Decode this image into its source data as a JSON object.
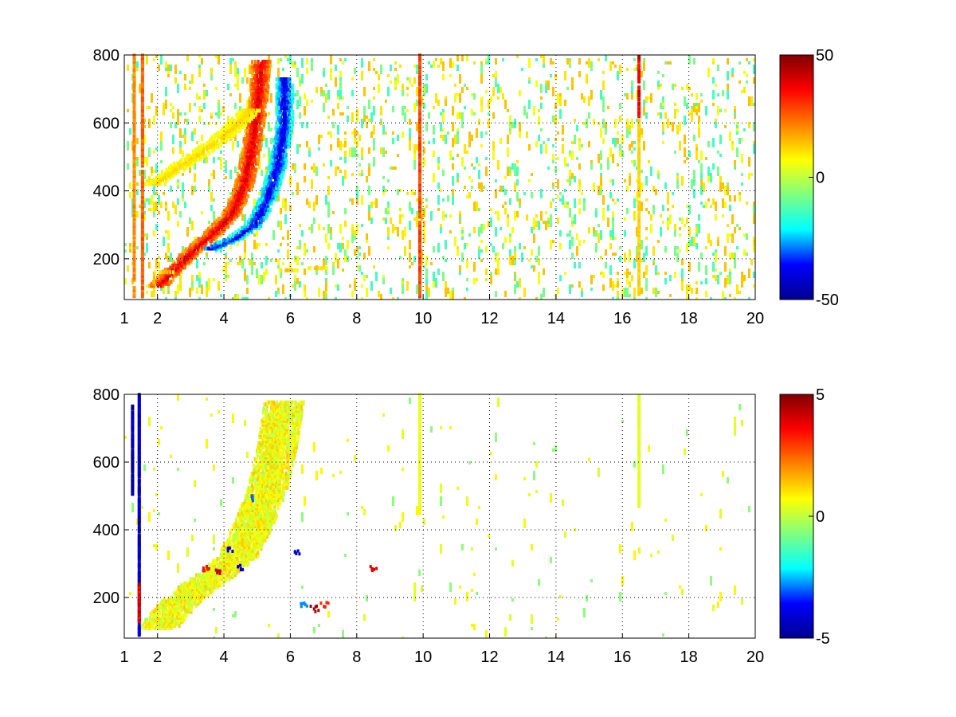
{
  "colormap": {
    "name": "jet",
    "stops": [
      "#00008f",
      "#0000ff",
      "#00ffff",
      "#80ff80",
      "#ffff00",
      "#ff8000",
      "#ff0000",
      "#800000"
    ]
  },
  "chart_data": [
    {
      "type": "heatmap",
      "title": "",
      "xlabel": "",
      "ylabel": "",
      "xlim": [
        1,
        20
      ],
      "ylim": [
        80,
        800
      ],
      "xticks": [
        1,
        2,
        4,
        6,
        8,
        10,
        12,
        14,
        16,
        18,
        20
      ],
      "xtick_labels": [
        "1",
        "2",
        "4",
        "6",
        "8",
        "10",
        "12",
        "14",
        "16",
        "18",
        "20"
      ],
      "yticks": [
        200,
        400,
        600,
        800
      ],
      "ytick_labels": [
        "200",
        "400",
        "600",
        "800"
      ],
      "grid": true,
      "clim": [
        -50,
        50
      ],
      "colorbar_ticks": [
        50,
        0,
        -50
      ],
      "colorbar_labels": [
        "50",
        "0",
        "-50"
      ],
      "features": [
        {
          "kind": "ridge",
          "points": [
            [
              2.0,
              120
            ],
            [
              2.6,
              180
            ],
            [
              3.0,
              220
            ],
            [
              3.6,
              270
            ],
            [
              4.2,
              330
            ],
            [
              4.6,
              420
            ],
            [
              4.8,
              520
            ],
            [
              5.0,
              650
            ],
            [
              5.1,
              780
            ]
          ],
          "value": 40,
          "halfwidth": 0.28
        },
        {
          "kind": "ridge",
          "points": [
            [
              3.6,
              230
            ],
            [
              4.3,
              260
            ],
            [
              4.9,
              300
            ],
            [
              5.3,
              380
            ],
            [
              5.6,
              480
            ],
            [
              5.8,
              600
            ],
            [
              5.8,
              730
            ]
          ],
          "value": -40,
          "halfwidth": 0.25
        },
        {
          "kind": "ridge",
          "points": [
            [
              1.9,
              420
            ],
            [
              2.6,
              470
            ],
            [
              3.4,
              520
            ],
            [
              4.2,
              580
            ],
            [
              4.8,
              640
            ]
          ],
          "value": 12,
          "halfwidth": 0.3
        },
        {
          "kind": "ridge",
          "points": [
            [
              2.2,
              160
            ],
            [
              3.5,
              165
            ],
            [
              5.0,
              160
            ],
            [
              6.5,
              170
            ],
            [
              7.2,
              175
            ]
          ],
          "value": 15,
          "halfwidth": 0.3
        },
        {
          "kind": "stripe",
          "x": 9.9,
          "y": [
            90,
            800
          ],
          "value": 28
        },
        {
          "kind": "stripe",
          "x": 16.5,
          "y": [
            620,
            800
          ],
          "value": 38
        },
        {
          "kind": "stripe",
          "x": 16.5,
          "y": [
            90,
            610
          ],
          "value": 12
        },
        {
          "kind": "stripe",
          "x": 1.3,
          "y": [
            90,
            800
          ],
          "value": 20
        },
        {
          "kind": "stripe",
          "x": 1.55,
          "y": [
            90,
            800
          ],
          "value": 25
        }
      ],
      "speckle_density": 0.09,
      "speckle_values": [
        -14,
        -8,
        6,
        10,
        14
      ]
    },
    {
      "type": "heatmap",
      "title": "",
      "xlabel": "",
      "ylabel": "",
      "xlim": [
        1,
        20
      ],
      "ylim": [
        80,
        800
      ],
      "xticks": [
        1,
        2,
        4,
        6,
        8,
        10,
        12,
        14,
        16,
        18,
        20
      ],
      "xtick_labels": [
        "1",
        "2",
        "4",
        "6",
        "8",
        "10",
        "12",
        "14",
        "16",
        "18",
        "20"
      ],
      "yticks": [
        200,
        400,
        600,
        800
      ],
      "ytick_labels": [
        "200",
        "400",
        "600",
        "800"
      ],
      "grid": true,
      "clim": [
        -5,
        5
      ],
      "colorbar_ticks": [
        5,
        0,
        -5
      ],
      "colorbar_labels": [
        "5",
        "0",
        "-5"
      ],
      "features": [
        {
          "kind": "blob",
          "points": [
            [
              2.0,
              110
            ],
            [
              2.6,
              180
            ],
            [
              3.2,
              230
            ],
            [
              3.8,
              270
            ],
            [
              4.4,
              320
            ],
            [
              4.9,
              420
            ],
            [
              5.3,
              520
            ],
            [
              5.6,
              650
            ],
            [
              5.8,
              780
            ]
          ],
          "value": 0.6,
          "halfwidth": 0.6
        },
        {
          "kind": "stripe",
          "x": 9.9,
          "y": [
            450,
            800
          ],
          "value": 0.5
        },
        {
          "kind": "stripe",
          "x": 16.5,
          "y": [
            470,
            800
          ],
          "value": 0.4
        },
        {
          "kind": "stripe",
          "x": 1.25,
          "y": [
            500,
            770
          ],
          "value": -4.5
        },
        {
          "kind": "stripe",
          "x": 1.45,
          "y": [
            90,
            800
          ],
          "value": -4.2
        },
        {
          "kind": "stripe",
          "x": 1.45,
          "y": [
            130,
            240
          ],
          "value": 3.8
        }
      ],
      "hot_spots": [
        [
          3.4,
          290,
          3.5
        ],
        [
          3.8,
          280,
          4.2
        ],
        [
          4.2,
          350,
          -3.6
        ],
        [
          4.5,
          290,
          -4.2
        ],
        [
          4.8,
          500,
          -3.0
        ],
        [
          6.2,
          340,
          -4.0
        ],
        [
          6.7,
          170,
          4.5
        ],
        [
          7.0,
          180,
          3.2
        ],
        [
          8.5,
          290,
          3.8
        ],
        [
          6.4,
          180,
          -2.8
        ]
      ],
      "speckle_density": 0.01,
      "speckle_values": [
        0.4,
        0.8,
        -0.6
      ]
    }
  ]
}
